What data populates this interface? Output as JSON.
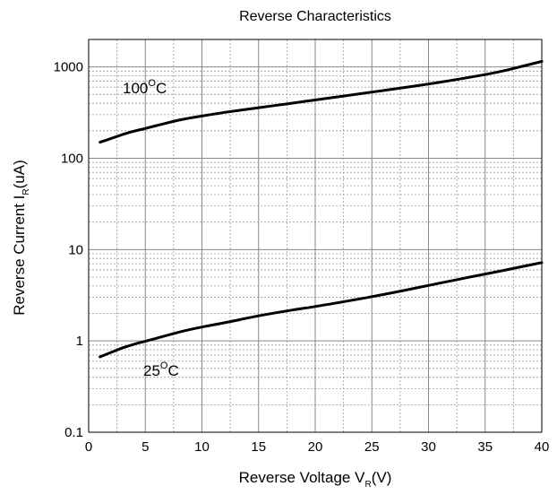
{
  "chart_data": {
    "type": "line",
    "title": "Reverse Characteristics",
    "xlabel": {
      "main": "Reverse Voltage V",
      "sub": "R",
      "tail": "(V)"
    },
    "ylabel": {
      "main": "Reverse Current I",
      "sub": "R",
      "tail": "(uA)"
    },
    "xlim": [
      0,
      40
    ],
    "ylim": [
      0.1,
      2000
    ],
    "yscale": "log",
    "grid": true,
    "x_ticks": [
      0,
      5,
      10,
      15,
      20,
      25,
      30,
      35,
      40
    ],
    "x_tick_labels": [
      "0",
      "5",
      "10",
      "15",
      "20",
      "25",
      "30",
      "35",
      "40"
    ],
    "y_ticks": [
      0.1,
      1,
      10,
      100,
      1000
    ],
    "y_tick_labels": [
      "0.1",
      "1",
      "10",
      "100",
      "1000"
    ],
    "series": [
      {
        "label": {
          "main": "100",
          "sup": "O",
          "tail": "C"
        },
        "color": "#000000",
        "x": [
          1,
          2,
          3,
          4,
          5,
          6,
          8,
          10,
          12,
          15,
          18,
          20,
          22,
          25,
          28,
          30,
          32,
          35,
          37,
          40
        ],
        "y": [
          150,
          165,
          182,
          198,
          212,
          228,
          262,
          290,
          318,
          358,
          402,
          435,
          470,
          530,
          598,
          650,
          712,
          825,
          930,
          1150
        ]
      },
      {
        "label": {
          "main": "25",
          "sup": "O",
          "tail": "C"
        },
        "color": "#000000",
        "x": [
          1,
          2,
          3,
          4,
          5,
          6,
          8,
          10,
          12,
          15,
          18,
          20,
          22,
          25,
          28,
          30,
          32,
          35,
          37,
          40
        ],
        "y": [
          0.67,
          0.75,
          0.84,
          0.92,
          0.99,
          1.07,
          1.25,
          1.42,
          1.58,
          1.88,
          2.18,
          2.38,
          2.62,
          3.05,
          3.6,
          4.05,
          4.55,
          5.4,
          6.05,
          7.2
        ]
      }
    ]
  }
}
